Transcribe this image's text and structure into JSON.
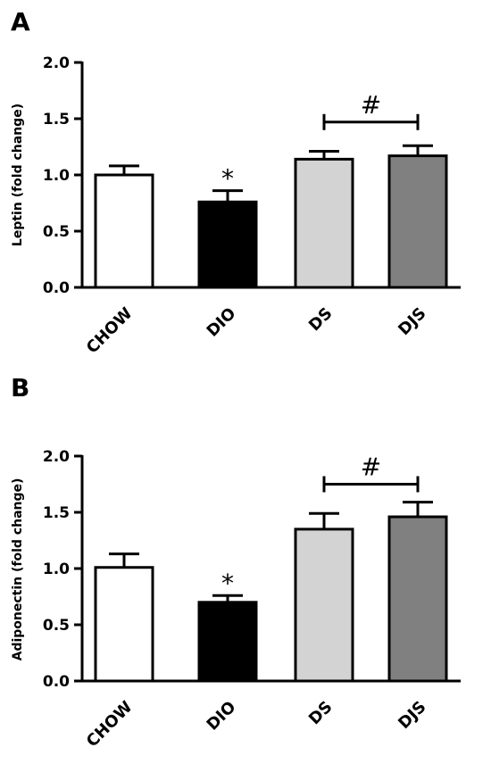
{
  "chart_data": [
    {
      "panel": "A",
      "type": "bar",
      "categories": [
        "CHOW",
        "DIO",
        "DS",
        "DJS"
      ],
      "values": [
        1.0,
        0.76,
        1.14,
        1.17
      ],
      "errors": [
        0.08,
        0.1,
        0.07,
        0.09
      ],
      "colors": [
        "#ffffff",
        "#000000",
        "#d3d3d3",
        "#808080"
      ],
      "ylabel": "Leptin (fold change)",
      "ylim": [
        0,
        2.0
      ],
      "yticks": [
        "0.0",
        "0.5",
        "1.0",
        "1.5",
        "2.0"
      ],
      "significance": [
        {
          "symbol": "*",
          "category": "DIO"
        },
        {
          "symbol": "#",
          "from": "DS",
          "to": "DJS",
          "y": 1.47
        }
      ]
    },
    {
      "panel": "B",
      "type": "bar",
      "categories": [
        "CHOW",
        "DIO",
        "DS",
        "DJS"
      ],
      "values": [
        1.01,
        0.7,
        1.35,
        1.46
      ],
      "errors": [
        0.12,
        0.06,
        0.14,
        0.13
      ],
      "colors": [
        "#ffffff",
        "#000000",
        "#d3d3d3",
        "#808080"
      ],
      "ylabel": "Adiponectin (fold change)",
      "ylim": [
        0,
        2.0
      ],
      "yticks": [
        "0.0",
        "0.5",
        "1.0",
        "1.5",
        "2.0"
      ],
      "significance": [
        {
          "symbol": "*",
          "category": "DIO"
        },
        {
          "symbol": "#",
          "from": "DS",
          "to": "DJS",
          "y": 1.75
        }
      ]
    }
  ]
}
